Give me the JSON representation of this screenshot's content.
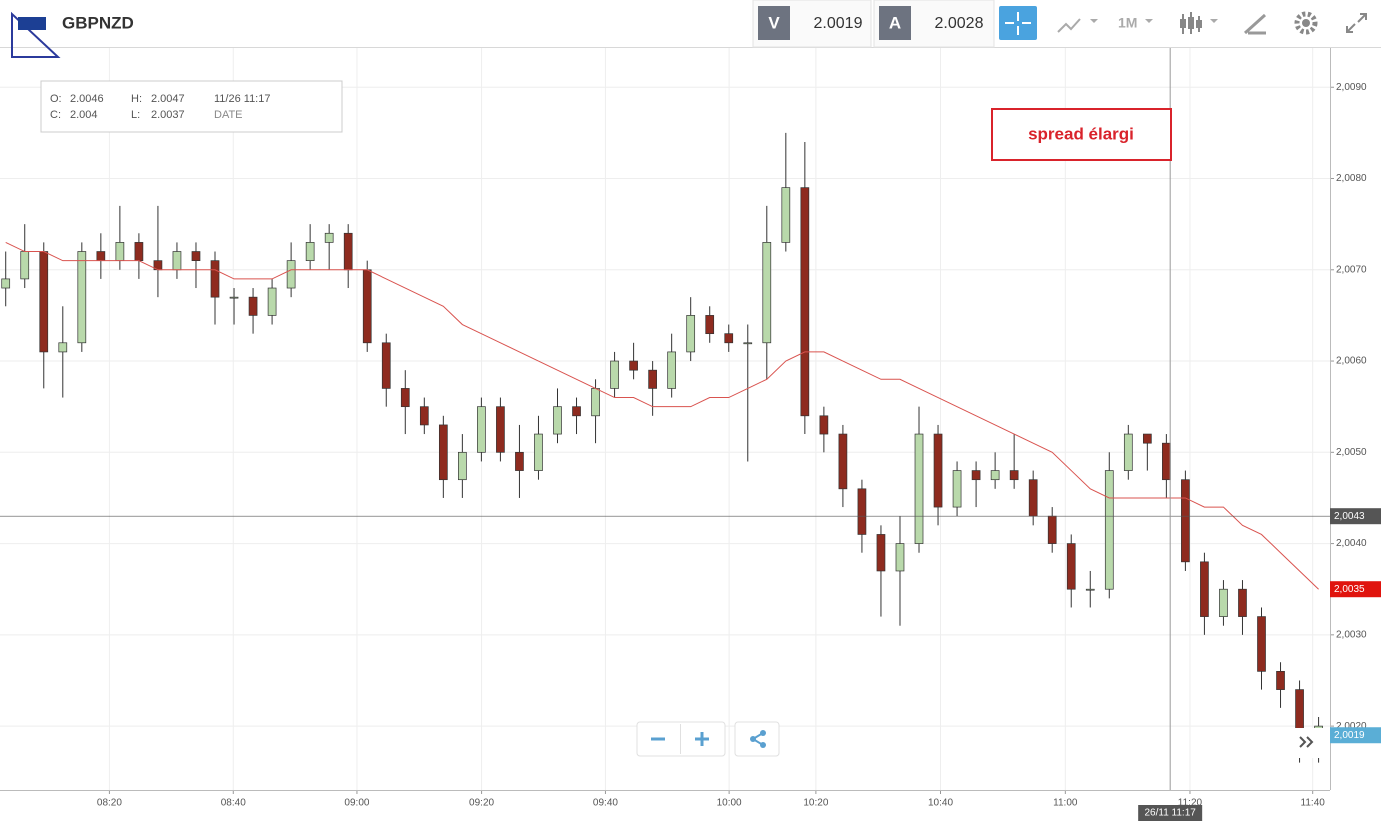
{
  "toolbar": {
    "symbol": "GBPNZD",
    "sell_label": "V",
    "sell_price": "2.0019",
    "buy_label": "A",
    "buy_price": "2.0028",
    "timeframe": "1M"
  },
  "ohlc_info": {
    "o_label": "O:",
    "o": "2.0046",
    "h_label": "H:",
    "h": "2.0047",
    "time": "11/26 11:17",
    "c_label": "C:",
    "c": "2.004",
    "l_label": "L:",
    "l": "2.0037",
    "date_label": "DATE"
  },
  "annotation": "spread élargi",
  "chart_data": {
    "type": "candlestick",
    "open": [
      2.0068,
      2.0069,
      2.0072,
      2.0061,
      2.0062,
      2.0072,
      2.0071,
      2.0073,
      2.0071,
      2.007,
      2.0072,
      2.0071,
      2.0067,
      2.0067,
      2.0065,
      2.0068,
      2.0071,
      2.0073,
      2.0074,
      2.007,
      2.0062,
      2.0057,
      2.0055,
      2.0053,
      2.0047,
      2.005,
      2.0055,
      2.005,
      2.0048,
      2.0052,
      2.0055,
      2.0054,
      2.0057,
      2.006,
      2.0059,
      2.0057,
      2.0061,
      2.0065,
      2.0063,
      2.0062,
      2.0062,
      2.0073,
      2.0079,
      2.0054,
      2.0052,
      2.0046,
      2.0041,
      2.0037,
      2.004,
      2.0052,
      2.0044,
      2.0048,
      2.0047,
      2.0048,
      2.0047,
      2.0043,
      2.004,
      2.0035,
      2.0035,
      2.0048,
      2.0052,
      2.0051,
      2.0047,
      2.0038,
      2.0032,
      2.0035,
      2.0032,
      2.0026,
      2.0024,
      2.0018
    ],
    "high": [
      2.0072,
      2.0075,
      2.0073,
      2.0066,
      2.0073,
      2.0074,
      2.0077,
      2.0074,
      2.0077,
      2.0073,
      2.0073,
      2.0072,
      2.0068,
      2.0068,
      2.0069,
      2.0073,
      2.0075,
      2.0075,
      2.0075,
      2.0071,
      2.0063,
      2.0059,
      2.0056,
      2.0054,
      2.0052,
      2.0056,
      2.0056,
      2.0053,
      2.0054,
      2.0057,
      2.0056,
      2.0058,
      2.0061,
      2.0062,
      2.006,
      2.0063,
      2.0067,
      2.0066,
      2.0064,
      2.0064,
      2.0077,
      2.0085,
      2.0084,
      2.0055,
      2.0053,
      2.0047,
      2.0042,
      2.0043,
      2.0055,
      2.0053,
      2.0049,
      2.0049,
      2.005,
      2.0052,
      2.0048,
      2.0044,
      2.0041,
      2.0037,
      2.005,
      2.0053,
      2.0052,
      2.0052,
      2.0048,
      2.0039,
      2.0036,
      2.0036,
      2.0033,
      2.0027,
      2.0025,
      2.0021
    ],
    "low": [
      2.0066,
      2.0068,
      2.0057,
      2.0056,
      2.0061,
      2.0069,
      2.007,
      2.0069,
      2.0067,
      2.0069,
      2.0068,
      2.0064,
      2.0064,
      2.0063,
      2.0064,
      2.0067,
      2.007,
      2.007,
      2.0068,
      2.0061,
      2.0055,
      2.0052,
      2.0052,
      2.0045,
      2.0045,
      2.0049,
      2.0049,
      2.0045,
      2.0047,
      2.0051,
      2.0052,
      2.0051,
      2.0056,
      2.0058,
      2.0054,
      2.0056,
      2.006,
      2.0062,
      2.0061,
      2.0049,
      2.0058,
      2.0072,
      2.0052,
      2.005,
      2.0044,
      2.0039,
      2.0032,
      2.0031,
      2.0039,
      2.0042,
      2.0043,
      2.0044,
      2.0046,
      2.0046,
      2.0042,
      2.0039,
      2.0033,
      2.0033,
      2.0034,
      2.0047,
      2.0048,
      2.0045,
      2.0037,
      2.003,
      2.0031,
      2.003,
      2.0024,
      2.0022,
      2.0016,
      2.0016
    ],
    "close": [
      2.0069,
      2.0072,
      2.0061,
      2.0062,
      2.0072,
      2.0071,
      2.0073,
      2.0071,
      2.007,
      2.0072,
      2.0071,
      2.0067,
      2.0067,
      2.0065,
      2.0068,
      2.0071,
      2.0073,
      2.0074,
      2.007,
      2.0062,
      2.0057,
      2.0055,
      2.0053,
      2.0047,
      2.005,
      2.0055,
      2.005,
      2.0048,
      2.0052,
      2.0055,
      2.0054,
      2.0057,
      2.006,
      2.0059,
      2.0057,
      2.0061,
      2.0065,
      2.0063,
      2.0062,
      2.0062,
      2.0073,
      2.0079,
      2.0054,
      2.0052,
      2.0046,
      2.0041,
      2.0037,
      2.004,
      2.0052,
      2.0044,
      2.0048,
      2.0047,
      2.0048,
      2.0047,
      2.0043,
      2.004,
      2.0035,
      2.0035,
      2.0048,
      2.0052,
      2.0051,
      2.0047,
      2.0038,
      2.0032,
      2.0035,
      2.0032,
      2.0026,
      2.0024,
      2.0018,
      2.002
    ],
    "ma_values": [
      2.0073,
      2.0072,
      2.0072,
      2.0071,
      2.0071,
      2.0071,
      2.0071,
      2.0071,
      2.007,
      2.007,
      2.007,
      2.007,
      2.0069,
      2.0069,
      2.0069,
      2.007,
      2.007,
      2.007,
      2.007,
      2.007,
      2.0069,
      2.0068,
      2.0067,
      2.0066,
      2.0064,
      2.0063,
      2.0062,
      2.0061,
      2.006,
      2.0059,
      2.0058,
      2.0057,
      2.0056,
      2.0056,
      2.0055,
      2.0055,
      2.0055,
      2.0056,
      2.0056,
      2.0057,
      2.0058,
      2.006,
      2.0061,
      2.0061,
      2.006,
      2.0059,
      2.0058,
      2.0058,
      2.0057,
      2.0056,
      2.0055,
      2.0054,
      2.0053,
      2.0052,
      2.0051,
      2.005,
      2.0048,
      2.0046,
      2.0045,
      2.0045,
      2.0045,
      2.0045,
      2.0045,
      2.0044,
      2.0044,
      2.0042,
      2.0041,
      2.0039,
      2.0037,
      2.0035
    ],
    "up_color": "#b9d9ab",
    "down_color": "#8e2b1f",
    "ma_color": "#d9534f",
    "ylim": [
      2.0013,
      2.00943
    ],
    "yticks": [
      {
        "value": 2.002,
        "label": "2,0020"
      },
      {
        "value": 2.003,
        "label": "2,0030"
      },
      {
        "value": 2.004,
        "label": "2,0040"
      },
      {
        "value": 2.005,
        "label": "2,0050"
      },
      {
        "value": 2.006,
        "label": "2,0060"
      },
      {
        "value": 2.007,
        "label": "2,0070"
      },
      {
        "value": 2.008,
        "label": "2,0080"
      },
      {
        "value": 2.009,
        "label": "2,0090"
      }
    ],
    "xlim": [
      -0.3,
      69.6
    ],
    "xticks": [
      {
        "value": 5.45,
        "label": "08:20"
      },
      {
        "value": 11.96,
        "label": "08:40"
      },
      {
        "value": 18.46,
        "label": "09:00"
      },
      {
        "value": 25.01,
        "label": "09:20"
      },
      {
        "value": 31.52,
        "label": "09:40"
      },
      {
        "value": 38.02,
        "label": "10:00"
      },
      {
        "value": 42.58,
        "label": "10:20"
      },
      {
        "value": 49.13,
        "label": "10:40"
      },
      {
        "value": 55.69,
        "label": "11:00"
      },
      {
        "value": 62.24,
        "label": "11:20"
      },
      {
        "value": 68.69,
        "label": "11:40"
      }
    ],
    "grid": true,
    "price_lines": [
      {
        "value": 2.0043,
        "label": "2,0043",
        "color": "#555555",
        "line": true
      },
      {
        "value": 2.0035,
        "label": "2,0035",
        "color": "#e0140e",
        "line": false
      },
      {
        "value": 2.0019,
        "label": "2,0019",
        "color": "#5aaed6",
        "line": false
      }
    ],
    "crosshair": {
      "value": 61.2,
      "label": "26/11 11:17"
    }
  }
}
